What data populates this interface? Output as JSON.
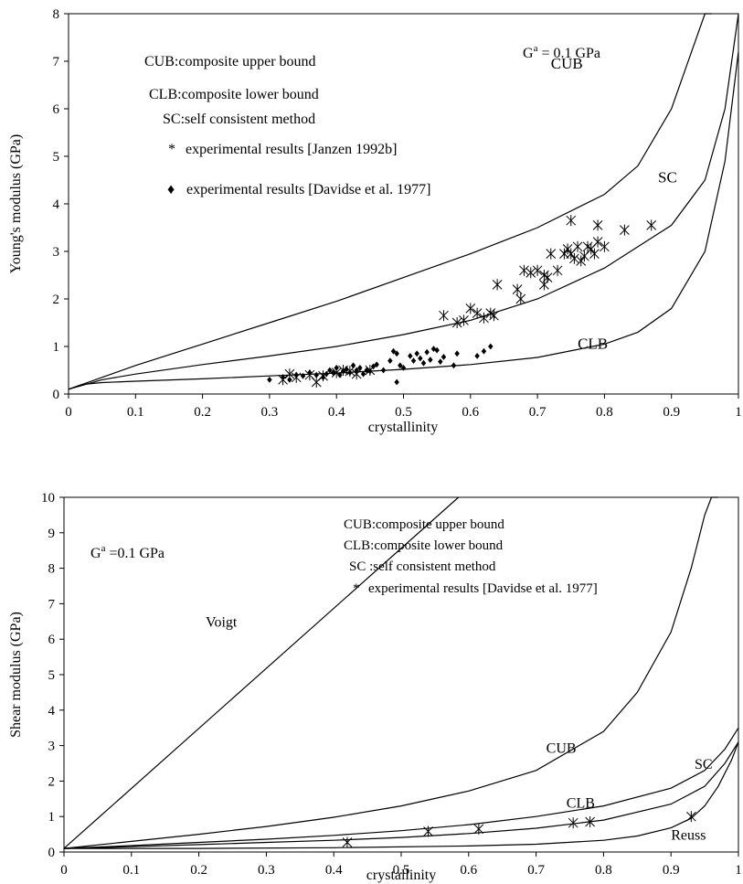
{
  "chart_data": [
    {
      "type": "line",
      "xlabel": "crystallinity",
      "ylabel": "Young's modulus (GPa)",
      "xlim": [
        0,
        1
      ],
      "ylim": [
        0,
        8
      ],
      "xticks": [
        "0",
        "0.1",
        "0.2",
        "0.3",
        "0.4",
        "0.5",
        "0.6",
        "0.7",
        "0.8",
        "0.9",
        "1"
      ],
      "yticks": [
        "0",
        "1",
        "2",
        "3",
        "4",
        "5",
        "6",
        "7",
        "8"
      ],
      "grid": false,
      "modulus_label": {
        "symbol": "G",
        "sup": "a",
        "text": " = 0.1 GPa"
      },
      "legend_lines": [
        {
          "text": "CUB:composite upper bound"
        },
        {
          "text": "CLB:composite lower bound"
        },
        {
          "text": "SC:self consistent method"
        },
        {
          "marker": "*",
          "text": "experimental results  [Janzen 1992b]"
        },
        {
          "marker": "♦",
          "text": "experimental results  [Davidse et al. 1977]"
        }
      ],
      "series": [
        {
          "name": "CUB",
          "label": "CUB",
          "x": [
            0,
            0.05,
            0.1,
            0.2,
            0.3,
            0.4,
            0.5,
            0.6,
            0.7,
            0.8,
            0.85,
            0.9,
            0.93,
            0.95,
            0.96
          ],
          "y": [
            0.1,
            0.35,
            0.6,
            1.05,
            1.5,
            1.95,
            2.45,
            2.95,
            3.5,
            4.2,
            4.8,
            6.0,
            7.2,
            8.0,
            8.0
          ]
        },
        {
          "name": "SC",
          "label": "SC",
          "x": [
            0,
            0.05,
            0.1,
            0.2,
            0.3,
            0.4,
            0.5,
            0.6,
            0.7,
            0.8,
            0.9,
            0.95,
            0.98,
            1.0
          ],
          "y": [
            0.1,
            0.3,
            0.42,
            0.62,
            0.8,
            1.0,
            1.25,
            1.55,
            2.0,
            2.65,
            3.55,
            4.5,
            6.0,
            8.0
          ]
        },
        {
          "name": "CLB",
          "label": "CLB",
          "x": [
            0,
            0.02,
            0.05,
            0.1,
            0.2,
            0.3,
            0.4,
            0.5,
            0.6,
            0.7,
            0.8,
            0.85,
            0.9,
            0.95,
            0.98,
            1.0
          ],
          "y": [
            0.1,
            0.2,
            0.24,
            0.27,
            0.32,
            0.38,
            0.44,
            0.52,
            0.62,
            0.77,
            1.05,
            1.3,
            1.8,
            3.0,
            4.9,
            7.2
          ]
        }
      ],
      "curve_labels": [
        {
          "text": "CUB",
          "x": 0.72,
          "y": 6.85
        },
        {
          "text": "SC",
          "x": 0.88,
          "y": 4.45
        },
        {
          "text": "CLB",
          "x": 0.76,
          "y": 0.95
        }
      ],
      "scatter_janzen": {
        "marker": "*",
        "x": [
          0.32,
          0.33,
          0.34,
          0.36,
          0.37,
          0.38,
          0.4,
          0.41,
          0.42,
          0.43,
          0.45,
          0.56,
          0.58,
          0.59,
          0.6,
          0.61,
          0.62,
          0.63,
          0.635,
          0.64,
          0.67,
          0.675,
          0.68,
          0.69,
          0.7,
          0.71,
          0.715,
          0.72,
          0.73,
          0.74,
          0.745,
          0.75,
          0.755,
          0.76,
          0.765,
          0.77,
          0.775,
          0.78,
          0.785,
          0.79,
          0.8,
          0.83,
          0.87,
          0.75,
          0.79,
          0.71
        ],
        "y": [
          0.3,
          0.42,
          0.35,
          0.4,
          0.25,
          0.38,
          0.45,
          0.5,
          0.48,
          0.42,
          0.5,
          1.65,
          1.5,
          1.55,
          1.8,
          1.7,
          1.6,
          1.7,
          1.65,
          2.3,
          2.2,
          2.0,
          2.6,
          2.55,
          2.6,
          2.3,
          2.45,
          2.95,
          2.6,
          2.95,
          3.05,
          3.65,
          2.85,
          3.1,
          2.8,
          2.9,
          3.1,
          3.05,
          2.95,
          3.2,
          3.1,
          3.45,
          3.55,
          2.95,
          3.55,
          2.5
        ]
      },
      "scatter_davidse": {
        "marker": "♦",
        "x": [
          0.3,
          0.32,
          0.33,
          0.34,
          0.35,
          0.36,
          0.37,
          0.38,
          0.385,
          0.39,
          0.395,
          0.4,
          0.405,
          0.41,
          0.415,
          0.42,
          0.425,
          0.43,
          0.435,
          0.44,
          0.445,
          0.45,
          0.455,
          0.46,
          0.47,
          0.48,
          0.485,
          0.49,
          0.495,
          0.5,
          0.51,
          0.515,
          0.52,
          0.525,
          0.53,
          0.535,
          0.54,
          0.545,
          0.55,
          0.555,
          0.56,
          0.575,
          0.58,
          0.61,
          0.62,
          0.63,
          0.49
        ],
        "y": [
          0.3,
          0.35,
          0.3,
          0.4,
          0.38,
          0.45,
          0.4,
          0.35,
          0.42,
          0.5,
          0.45,
          0.55,
          0.4,
          0.48,
          0.52,
          0.45,
          0.6,
          0.5,
          0.55,
          0.42,
          0.5,
          0.48,
          0.58,
          0.62,
          0.5,
          0.7,
          0.9,
          0.85,
          0.6,
          0.55,
          0.8,
          0.7,
          0.85,
          0.75,
          0.65,
          0.88,
          0.72,
          0.95,
          0.92,
          0.68,
          0.78,
          0.6,
          0.85,
          0.8,
          0.9,
          1.0,
          0.25
        ]
      }
    },
    {
      "type": "line",
      "xlabel": "crystallinity",
      "ylabel": "Shear modulus (GPa)",
      "xlim": [
        0,
        1
      ],
      "ylim": [
        0,
        10
      ],
      "xticks": [
        "0",
        "0.1",
        "0.2",
        "0.3",
        "0.4",
        "0.5",
        "0.6",
        "0.7",
        "0.8",
        "0.9",
        "1"
      ],
      "yticks": [
        "0",
        "1",
        "2",
        "3",
        "4",
        "5",
        "6",
        "7",
        "8",
        "9",
        "10"
      ],
      "grid": false,
      "modulus_label": {
        "symbol": "G",
        "sup": "a",
        "text": " =0.1 GPa"
      },
      "legend_lines": [
        {
          "text": "CUB:composite upper bound"
        },
        {
          "text": "CLB:composite lower bound"
        },
        {
          "text": "SC :self consistent method"
        },
        {
          "marker": "*",
          "text": "experimental results  [Davidse et al. 1977]"
        }
      ],
      "series": [
        {
          "name": "Voigt",
          "label": "Voigt",
          "x": [
            0,
            0.585
          ],
          "y": [
            0.1,
            10
          ]
        },
        {
          "name": "CUB",
          "label": "CUB",
          "x": [
            0,
            0.1,
            0.2,
            0.3,
            0.4,
            0.5,
            0.6,
            0.7,
            0.8,
            0.85,
            0.9,
            0.93,
            0.95,
            0.96,
            0.97
          ],
          "y": [
            0.1,
            0.3,
            0.5,
            0.72,
            0.98,
            1.3,
            1.72,
            2.3,
            3.4,
            4.5,
            6.2,
            8.0,
            9.5,
            10,
            10
          ]
        },
        {
          "name": "SC",
          "label": "SC",
          "x": [
            0,
            0.1,
            0.2,
            0.3,
            0.4,
            0.5,
            0.6,
            0.7,
            0.8,
            0.9,
            0.95,
            0.98,
            1.0
          ],
          "y": [
            0.1,
            0.18,
            0.27,
            0.36,
            0.47,
            0.6,
            0.77,
            1.0,
            1.3,
            1.8,
            2.3,
            2.9,
            3.5
          ]
        },
        {
          "name": "CLB",
          "label": "CLB",
          "x": [
            0,
            0.1,
            0.2,
            0.3,
            0.4,
            0.5,
            0.6,
            0.7,
            0.8,
            0.9,
            0.95,
            0.98,
            1.0
          ],
          "y": [
            0.1,
            0.15,
            0.21,
            0.27,
            0.33,
            0.41,
            0.52,
            0.67,
            0.9,
            1.35,
            1.85,
            2.5,
            3.1
          ]
        },
        {
          "name": "Reuss",
          "label": "Reuss",
          "x": [
            0,
            0.2,
            0.4,
            0.6,
            0.7,
            0.8,
            0.85,
            0.9,
            0.93,
            0.95,
            0.97,
            0.99,
            1.0
          ],
          "y": [
            0.1,
            0.1,
            0.12,
            0.17,
            0.22,
            0.33,
            0.45,
            0.68,
            0.95,
            1.3,
            1.85,
            2.6,
            3.1
          ]
        }
      ],
      "curve_labels": [
        {
          "text": "Voigt",
          "x": 0.21,
          "y": 6.35
        },
        {
          "text": "CUB",
          "x": 0.715,
          "y": 2.8
        },
        {
          "text": "SC",
          "x": 0.935,
          "y": 2.35
        },
        {
          "text": "CLB",
          "x": 0.745,
          "y": 1.25
        },
        {
          "text": "Reuss",
          "x": 0.9,
          "y": 0.35
        }
      ],
      "scatter_davidse": {
        "marker": "*",
        "x": [
          0.42,
          0.54,
          0.615,
          0.755,
          0.78,
          0.93
        ],
        "y": [
          0.27,
          0.58,
          0.65,
          0.82,
          0.85,
          1.0
        ]
      }
    }
  ]
}
